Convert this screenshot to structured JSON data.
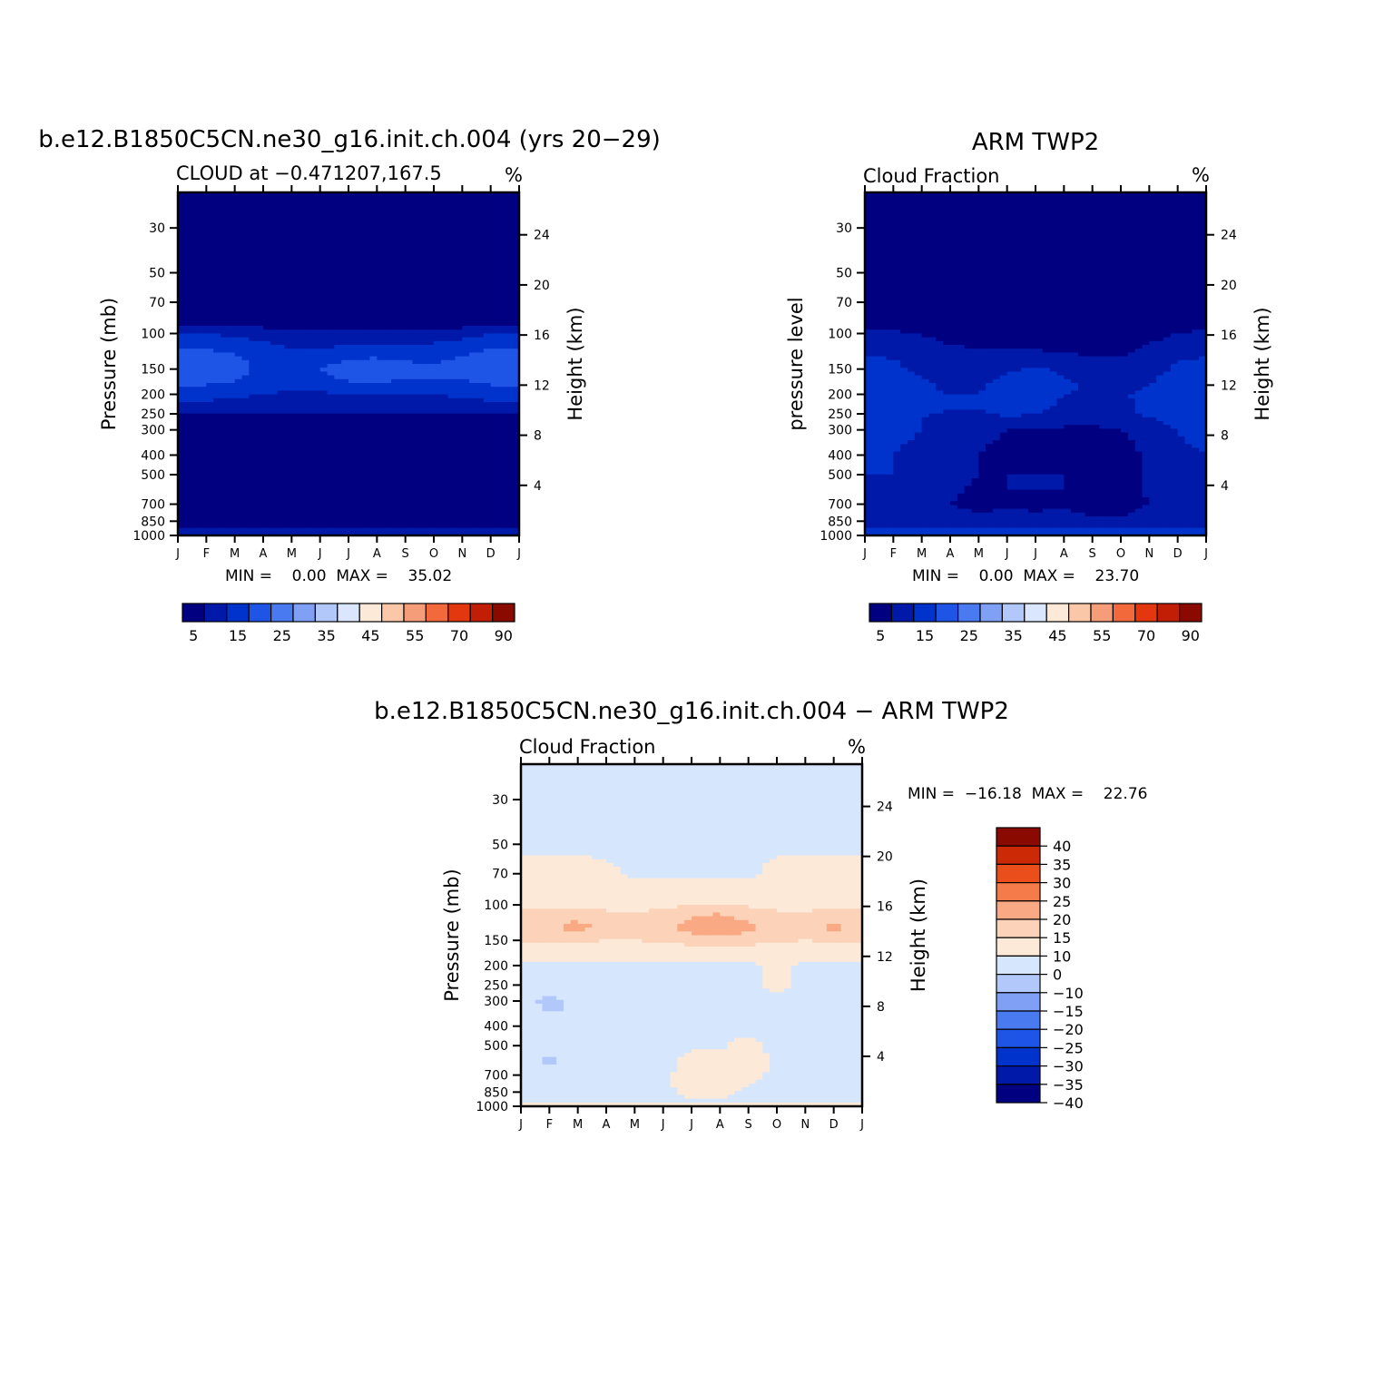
{
  "page": {
    "background": "#ffffff"
  },
  "colors": {
    "abs_scale": [
      "#000080",
      "#0019a8",
      "#0033cc",
      "#1f55e6",
      "#4a7af0",
      "#7fa0f5",
      "#b3c8fa",
      "#d9e6fd",
      "#fde9d8",
      "#fac8a8",
      "#f59c78",
      "#f26a3c",
      "#e3380f",
      "#c21e06",
      "#8a0a00"
    ],
    "diff_scale": [
      "#000080",
      "#0019a8",
      "#0033cc",
      "#1f55e6",
      "#4a7af0",
      "#7fa0f5",
      "#b3c8fa",
      "#d6e6fd",
      "#fde9d8",
      "#fcd3b8",
      "#f9a983",
      "#f57b4b",
      "#e94e1b",
      "#cc2a06",
      "#8a0a00"
    ]
  },
  "chart_data": [
    {
      "type": "heatmap",
      "title": "b.e12.B1850C5CN.ne30_g16.init.ch.004 (yrs 20−29)",
      "subtitle": "CLOUD at −0.471207,167.5",
      "units": "%",
      "ylabel": "Pressure (mb)",
      "y2label": "Height (km)",
      "x_tick_labels": [
        "J",
        "F",
        "M",
        "A",
        "M",
        "J",
        "J",
        "A",
        "S",
        "O",
        "N",
        "D",
        "J"
      ],
      "y_ticks": [
        30,
        50,
        70,
        100,
        150,
        200,
        250,
        300,
        400,
        500,
        700,
        850,
        1000
      ],
      "y2_ticks": [
        24,
        20,
        16,
        12,
        8,
        4
      ],
      "ylim": [
        20,
        1000
      ],
      "y_scale": "log",
      "min_max_text": "MIN =    0.00  MAX =    35.02",
      "min": 0.0,
      "max": 35.02,
      "colorbar": {
        "orientation": "horizontal",
        "levels": [
          5,
          10,
          15,
          20,
          25,
          30,
          35,
          40,
          45,
          50,
          55,
          60,
          70,
          80
        ],
        "labels": [
          "5",
          "15",
          "25",
          "35",
          "45",
          "55",
          "70",
          "90"
        ]
      },
      "profile_levels_mb": [
        20,
        70,
        90,
        100,
        120,
        150,
        180,
        200,
        240,
        260,
        300,
        400,
        500,
        600,
        700,
        850,
        950,
        1000
      ],
      "values_by_month": [
        [
          0,
          0,
          5,
          10,
          15,
          20,
          15,
          12,
          7,
          3,
          1,
          1,
          2,
          1,
          1,
          1,
          8,
          5
        ],
        [
          0,
          0,
          5,
          10,
          15,
          20,
          15,
          12,
          7,
          3,
          1,
          1,
          3,
          1,
          1,
          1,
          8,
          5
        ],
        [
          0,
          0,
          5,
          9,
          14,
          18,
          14,
          11,
          7,
          3,
          1,
          1,
          4,
          2,
          1,
          1,
          8,
          5
        ],
        [
          0,
          0,
          3,
          8,
          12,
          13,
          13,
          10,
          7,
          3,
          1,
          1,
          2,
          1,
          1,
          1,
          8,
          5
        ],
        [
          0,
          0,
          2,
          6,
          10,
          12,
          12,
          9,
          6,
          3,
          1,
          1,
          1,
          1,
          1,
          1,
          8,
          5
        ],
        [
          0,
          0,
          2,
          6,
          10,
          15,
          13,
          9,
          6,
          3,
          1,
          1,
          2,
          3,
          1,
          1,
          8,
          5
        ],
        [
          0,
          0,
          3,
          7,
          12,
          18,
          14,
          10,
          7,
          3,
          1,
          2,
          4,
          4,
          3,
          2,
          8,
          5
        ],
        [
          0,
          0,
          3,
          7,
          12,
          19,
          14,
          10,
          7,
          3,
          1,
          3,
          4,
          4,
          3,
          2,
          8,
          5
        ],
        [
          0,
          0,
          3,
          7,
          12,
          17,
          14,
          10,
          7,
          3,
          1,
          2,
          2,
          2,
          1,
          1,
          8,
          5
        ],
        [
          0,
          0,
          3,
          7,
          12,
          16,
          14,
          10,
          7,
          3,
          1,
          1,
          1,
          1,
          1,
          1,
          8,
          5
        ],
        [
          0,
          0,
          3,
          8,
          14,
          17,
          14,
          11,
          7,
          3,
          1,
          1,
          1,
          1,
          1,
          1,
          8,
          5
        ],
        [
          0,
          0,
          5,
          10,
          15,
          20,
          15,
          12,
          7,
          3,
          1,
          1,
          1,
          1,
          1,
          1,
          8,
          5
        ],
        [
          0,
          0,
          5,
          10,
          15,
          20,
          15,
          12,
          7,
          3,
          1,
          1,
          2,
          1,
          1,
          1,
          8,
          5
        ]
      ]
    },
    {
      "type": "heatmap",
      "title": "ARM TWP2",
      "subtitle": "Cloud Fraction",
      "units": "%",
      "ylabel": "pressure level",
      "y2label": "Height (km)",
      "x_tick_labels": [
        "J",
        "F",
        "M",
        "A",
        "M",
        "J",
        "J",
        "A",
        "S",
        "O",
        "N",
        "D",
        "J"
      ],
      "y_ticks": [
        30,
        50,
        70,
        100,
        150,
        200,
        250,
        300,
        400,
        500,
        700,
        850,
        1000
      ],
      "y2_ticks": [
        24,
        20,
        16,
        12,
        8,
        4
      ],
      "ylim": [
        20,
        1000
      ],
      "y_scale": "log",
      "min_max_text": "MIN =    0.00  MAX =    23.70",
      "min": 0.0,
      "max": 23.7,
      "colorbar": {
        "orientation": "horizontal",
        "levels": [
          5,
          10,
          15,
          20,
          25,
          30,
          35,
          40,
          45,
          50,
          55,
          60,
          70,
          80
        ],
        "labels": [
          "5",
          "15",
          "25",
          "35",
          "45",
          "55",
          "70",
          "90"
        ]
      },
      "profile_levels_mb": [
        20,
        70,
        90,
        100,
        120,
        150,
        180,
        200,
        240,
        260,
        300,
        400,
        500,
        600,
        700,
        850,
        950,
        1000
      ],
      "values_by_month": [
        [
          0,
          0,
          4,
          6,
          9,
          12,
          14,
          15,
          15,
          14,
          12,
          10,
          10,
          8,
          5,
          9,
          11,
          13
        ],
        [
          0,
          0,
          3,
          6,
          9,
          11,
          13,
          13,
          13,
          12,
          11,
          10,
          10,
          7,
          5,
          9,
          11,
          13
        ],
        [
          0,
          0,
          2,
          5,
          7,
          9,
          11,
          11,
          11,
          10,
          10,
          9,
          9,
          7,
          5,
          9,
          11,
          13
        ],
        [
          0,
          0,
          1,
          3,
          6,
          8,
          9,
          10,
          10,
          9,
          8,
          8,
          8,
          6,
          5,
          9,
          11,
          13
        ],
        [
          0,
          0,
          0,
          2,
          5,
          8,
          9,
          10,
          10,
          9,
          6,
          5,
          5,
          4,
          2,
          8,
          11,
          13
        ],
        [
          0,
          0,
          0,
          1,
          5,
          9,
          12,
          12,
          11,
          10,
          5,
          4,
          5,
          5,
          4,
          8,
          11,
          13
        ],
        [
          0,
          0,
          0,
          1,
          5,
          11,
          13,
          13,
          11,
          9,
          5,
          4,
          5,
          5,
          3,
          8,
          11,
          13
        ],
        [
          0,
          0,
          0,
          1,
          4,
          9,
          11,
          10,
          9,
          8,
          4,
          3,
          5,
          5,
          4,
          8,
          11,
          13
        ],
        [
          0,
          0,
          0,
          1,
          4,
          7,
          9,
          9,
          8,
          7,
          4,
          1,
          1,
          1,
          1,
          7,
          11,
          13
        ],
        [
          0,
          0,
          0,
          1,
          4,
          7,
          8,
          9,
          8,
          7,
          5,
          1,
          1,
          1,
          1,
          7,
          11,
          13
        ],
        [
          0,
          0,
          1,
          3,
          6,
          8,
          10,
          12,
          12,
          10,
          8,
          7,
          7,
          6,
          5,
          8,
          11,
          13
        ],
        [
          0,
          0,
          2,
          5,
          8,
          11,
          13,
          14,
          14,
          12,
          10,
          9,
          8,
          7,
          5,
          9,
          11,
          13
        ],
        [
          0,
          0,
          4,
          6,
          9,
          12,
          14,
          15,
          15,
          14,
          12,
          10,
          10,
          8,
          5,
          9,
          11,
          13
        ]
      ]
    },
    {
      "type": "heatmap",
      "title": "b.e12.B1850C5CN.ne30_g16.init.ch.004 − ARM TWP2",
      "subtitle": "Cloud Fraction",
      "units": "%",
      "ylabel": "Pressure (mb)",
      "y2label": "Height (km)",
      "x_tick_labels": [
        "J",
        "F",
        "M",
        "A",
        "M",
        "J",
        "J",
        "A",
        "S",
        "O",
        "N",
        "D",
        "J"
      ],
      "y_ticks": [
        30,
        50,
        70,
        100,
        150,
        200,
        250,
        300,
        400,
        500,
        700,
        850,
        1000
      ],
      "y2_ticks": [
        24,
        20,
        16,
        12,
        8,
        4
      ],
      "ylim": [
        20,
        1000
      ],
      "y_scale": "log",
      "min_max_text": "MIN =  −16.18  MAX =    22.76",
      "min": -16.18,
      "max": 22.76,
      "colorbar": {
        "orientation": "vertical",
        "levels": [
          -40,
          -35,
          -30,
          -25,
          -20,
          -15,
          -10,
          0,
          10,
          15,
          20,
          25,
          30,
          35,
          40
        ],
        "labels": [
          "40",
          "35",
          "30",
          "25",
          "20",
          "15",
          "10",
          "0",
          "−10",
          "−15",
          "−20",
          "−25",
          "−30",
          "−35",
          "−40"
        ]
      },
      "profile_levels_mb": [
        20,
        50,
        70,
        90,
        110,
        130,
        150,
        170,
        200,
        250,
        300,
        400,
        500,
        600,
        700,
        850,
        950,
        1000
      ],
      "values_by_month": [
        [
          -2,
          -2,
          3,
          5,
          11,
          14,
          11,
          4,
          -2,
          -3,
          -6,
          -4,
          -3,
          -3,
          -4,
          -2,
          -2,
          2
        ],
        [
          -2,
          -2,
          3,
          5,
          11,
          14,
          11,
          4,
          -2,
          -3,
          -13,
          -7,
          -8,
          -12,
          -9,
          -11,
          -2,
          2
        ],
        [
          -2,
          -2,
          3,
          5,
          13,
          17,
          12,
          5,
          -2,
          -4,
          -8,
          -9,
          -6,
          -3,
          -2,
          -2,
          -2,
          2
        ],
        [
          -2,
          -2,
          2,
          5,
          11,
          13,
          10,
          4,
          -2,
          -3,
          -5,
          -6,
          -3,
          -3,
          -3,
          -2,
          -2,
          2
        ],
        [
          -2,
          -2,
          -2,
          5,
          10,
          11,
          10,
          5,
          -2,
          -3,
          -3,
          -3,
          -3,
          -3,
          -2,
          -2,
          -2,
          2
        ],
        [
          -2,
          -2,
          -2,
          5,
          12,
          13,
          11,
          5,
          -2,
          -3,
          -3,
          -3,
          -3,
          -3,
          -2,
          -2,
          -2,
          2
        ],
        [
          -2,
          -2,
          -2,
          5,
          14,
          17,
          13,
          7,
          -2,
          -3,
          -3,
          -3,
          -1,
          3,
          4,
          3,
          -2,
          2
        ],
        [
          -2,
          -2,
          -2,
          5,
          15,
          18,
          14,
          7,
          -2,
          -3,
          -3,
          -3,
          -1,
          4,
          2,
          3,
          -2,
          2
        ],
        [
          -2,
          -2,
          -2,
          5,
          13,
          16,
          13,
          6,
          -2,
          -3,
          -3,
          -3,
          3,
          5,
          3,
          -2,
          -2,
          2
        ],
        [
          -2,
          -2,
          3,
          5,
          11,
          13,
          11,
          5,
          3,
          3,
          -3,
          -3,
          -3,
          -2,
          -2,
          -2,
          -2,
          2
        ],
        [
          -2,
          -2,
          3,
          5,
          10,
          12,
          10,
          5,
          -2,
          -3,
          -3,
          -3,
          -3,
          -3,
          -3,
          -2,
          -2,
          2
        ],
        [
          -2,
          -2,
          3,
          5,
          13,
          16,
          12,
          5,
          -2,
          -3,
          -9,
          -9,
          -3,
          -3,
          -3,
          -2,
          -2,
          2
        ],
        [
          -2,
          -2,
          3,
          5,
          11,
          14,
          11,
          4,
          -2,
          -3,
          -6,
          -4,
          -3,
          -3,
          -4,
          -2,
          -2,
          2
        ]
      ]
    }
  ]
}
